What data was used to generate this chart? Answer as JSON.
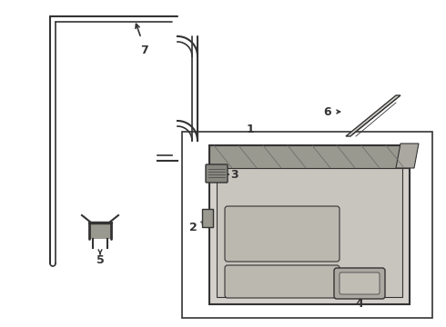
{
  "bg": "#ffffff",
  "lc": "#333333",
  "box_bg": "#ffffff",
  "part7_color": "#555555",
  "panel_fill": "#d8d4cf",
  "panel_edge": "#444444",
  "strip_fill": "#888880",
  "window_fill": "#ccccbe"
}
